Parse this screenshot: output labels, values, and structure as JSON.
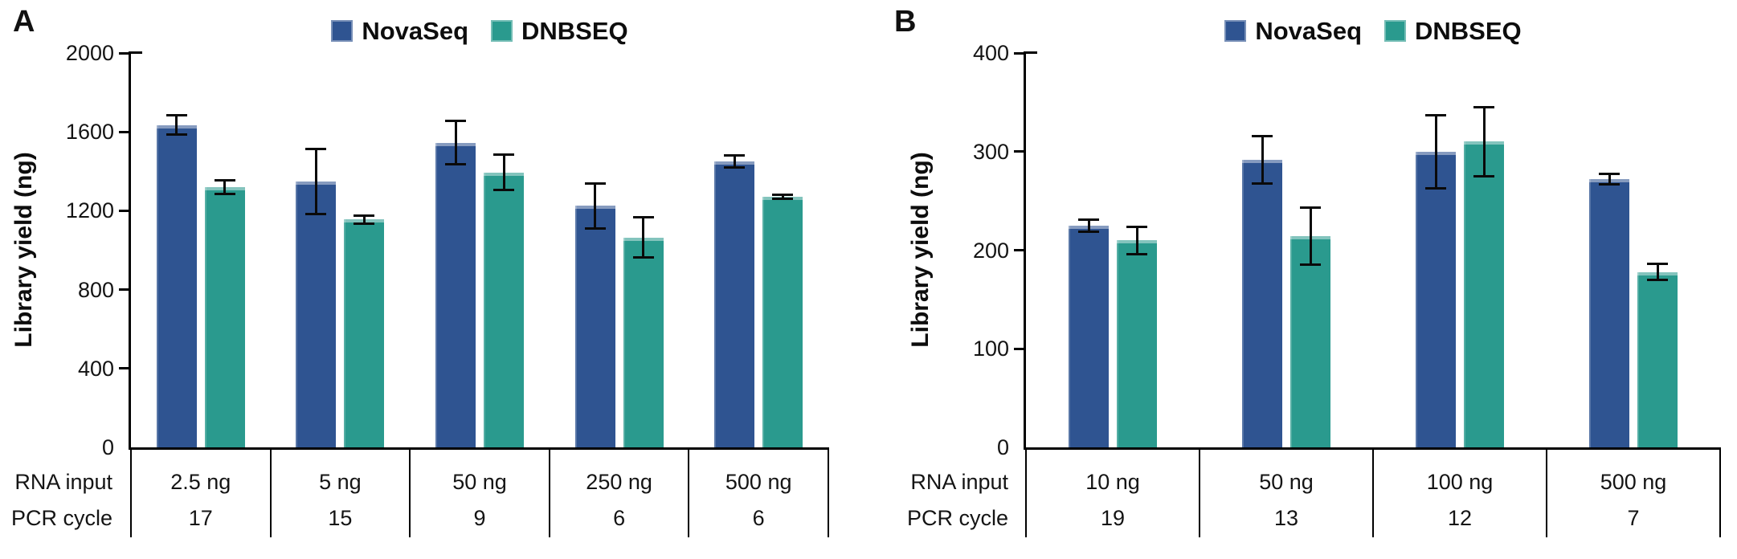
{
  "figure": {
    "background": "#ffffff",
    "axis_color": "#000000",
    "error_bar_color": "#0a0a0a"
  },
  "chart_data": [
    {
      "type": "bar",
      "panel_label": "A",
      "ylabel": "Library yield (ng)",
      "ylim": [
        0,
        2000
      ],
      "yticks": [
        0,
        400,
        800,
        1200,
        1600,
        2000
      ],
      "grid": false,
      "legend_position": "top-center",
      "row_labels": [
        "RNA input",
        "PCR cycle"
      ],
      "categories": [
        "2.5 ng",
        "5 ng",
        "50 ng",
        "250 ng",
        "500 ng"
      ],
      "pcr_cycles": [
        "17",
        "15",
        "9",
        "6",
        "6"
      ],
      "series": [
        {
          "name": "NovaSeq",
          "color": "#2F5491",
          "values": [
            1635,
            1350,
            1545,
            1225,
            1450
          ],
          "errors": [
            50,
            165,
            110,
            115,
            30
          ]
        },
        {
          "name": "DNBSEQ",
          "color": "#2A9A8E",
          "values": [
            1320,
            1155,
            1395,
            1065,
            1270
          ],
          "errors": [
            35,
            20,
            90,
            100,
            10
          ]
        }
      ]
    },
    {
      "type": "bar",
      "panel_label": "B",
      "ylabel": "Library yield (ng)",
      "ylim": [
        0,
        400
      ],
      "yticks": [
        0,
        100,
        200,
        300,
        400
      ],
      "grid": false,
      "legend_position": "top-center",
      "row_labels": [
        "RNA input",
        "PCR cycle"
      ],
      "categories": [
        "10 ng",
        "50 ng",
        "100 ng",
        "500 ng"
      ],
      "pcr_cycles": [
        "19",
        "13",
        "12",
        "7"
      ],
      "series": [
        {
          "name": "NovaSeq",
          "color": "#2F5491",
          "values": [
            225,
            292,
            300,
            272
          ],
          "errors": [
            6,
            24,
            37,
            5
          ]
        },
        {
          "name": "DNBSEQ",
          "color": "#2A9A8E",
          "values": [
            210,
            214,
            310,
            178
          ],
          "errors": [
            14,
            29,
            35,
            8
          ]
        }
      ]
    }
  ]
}
